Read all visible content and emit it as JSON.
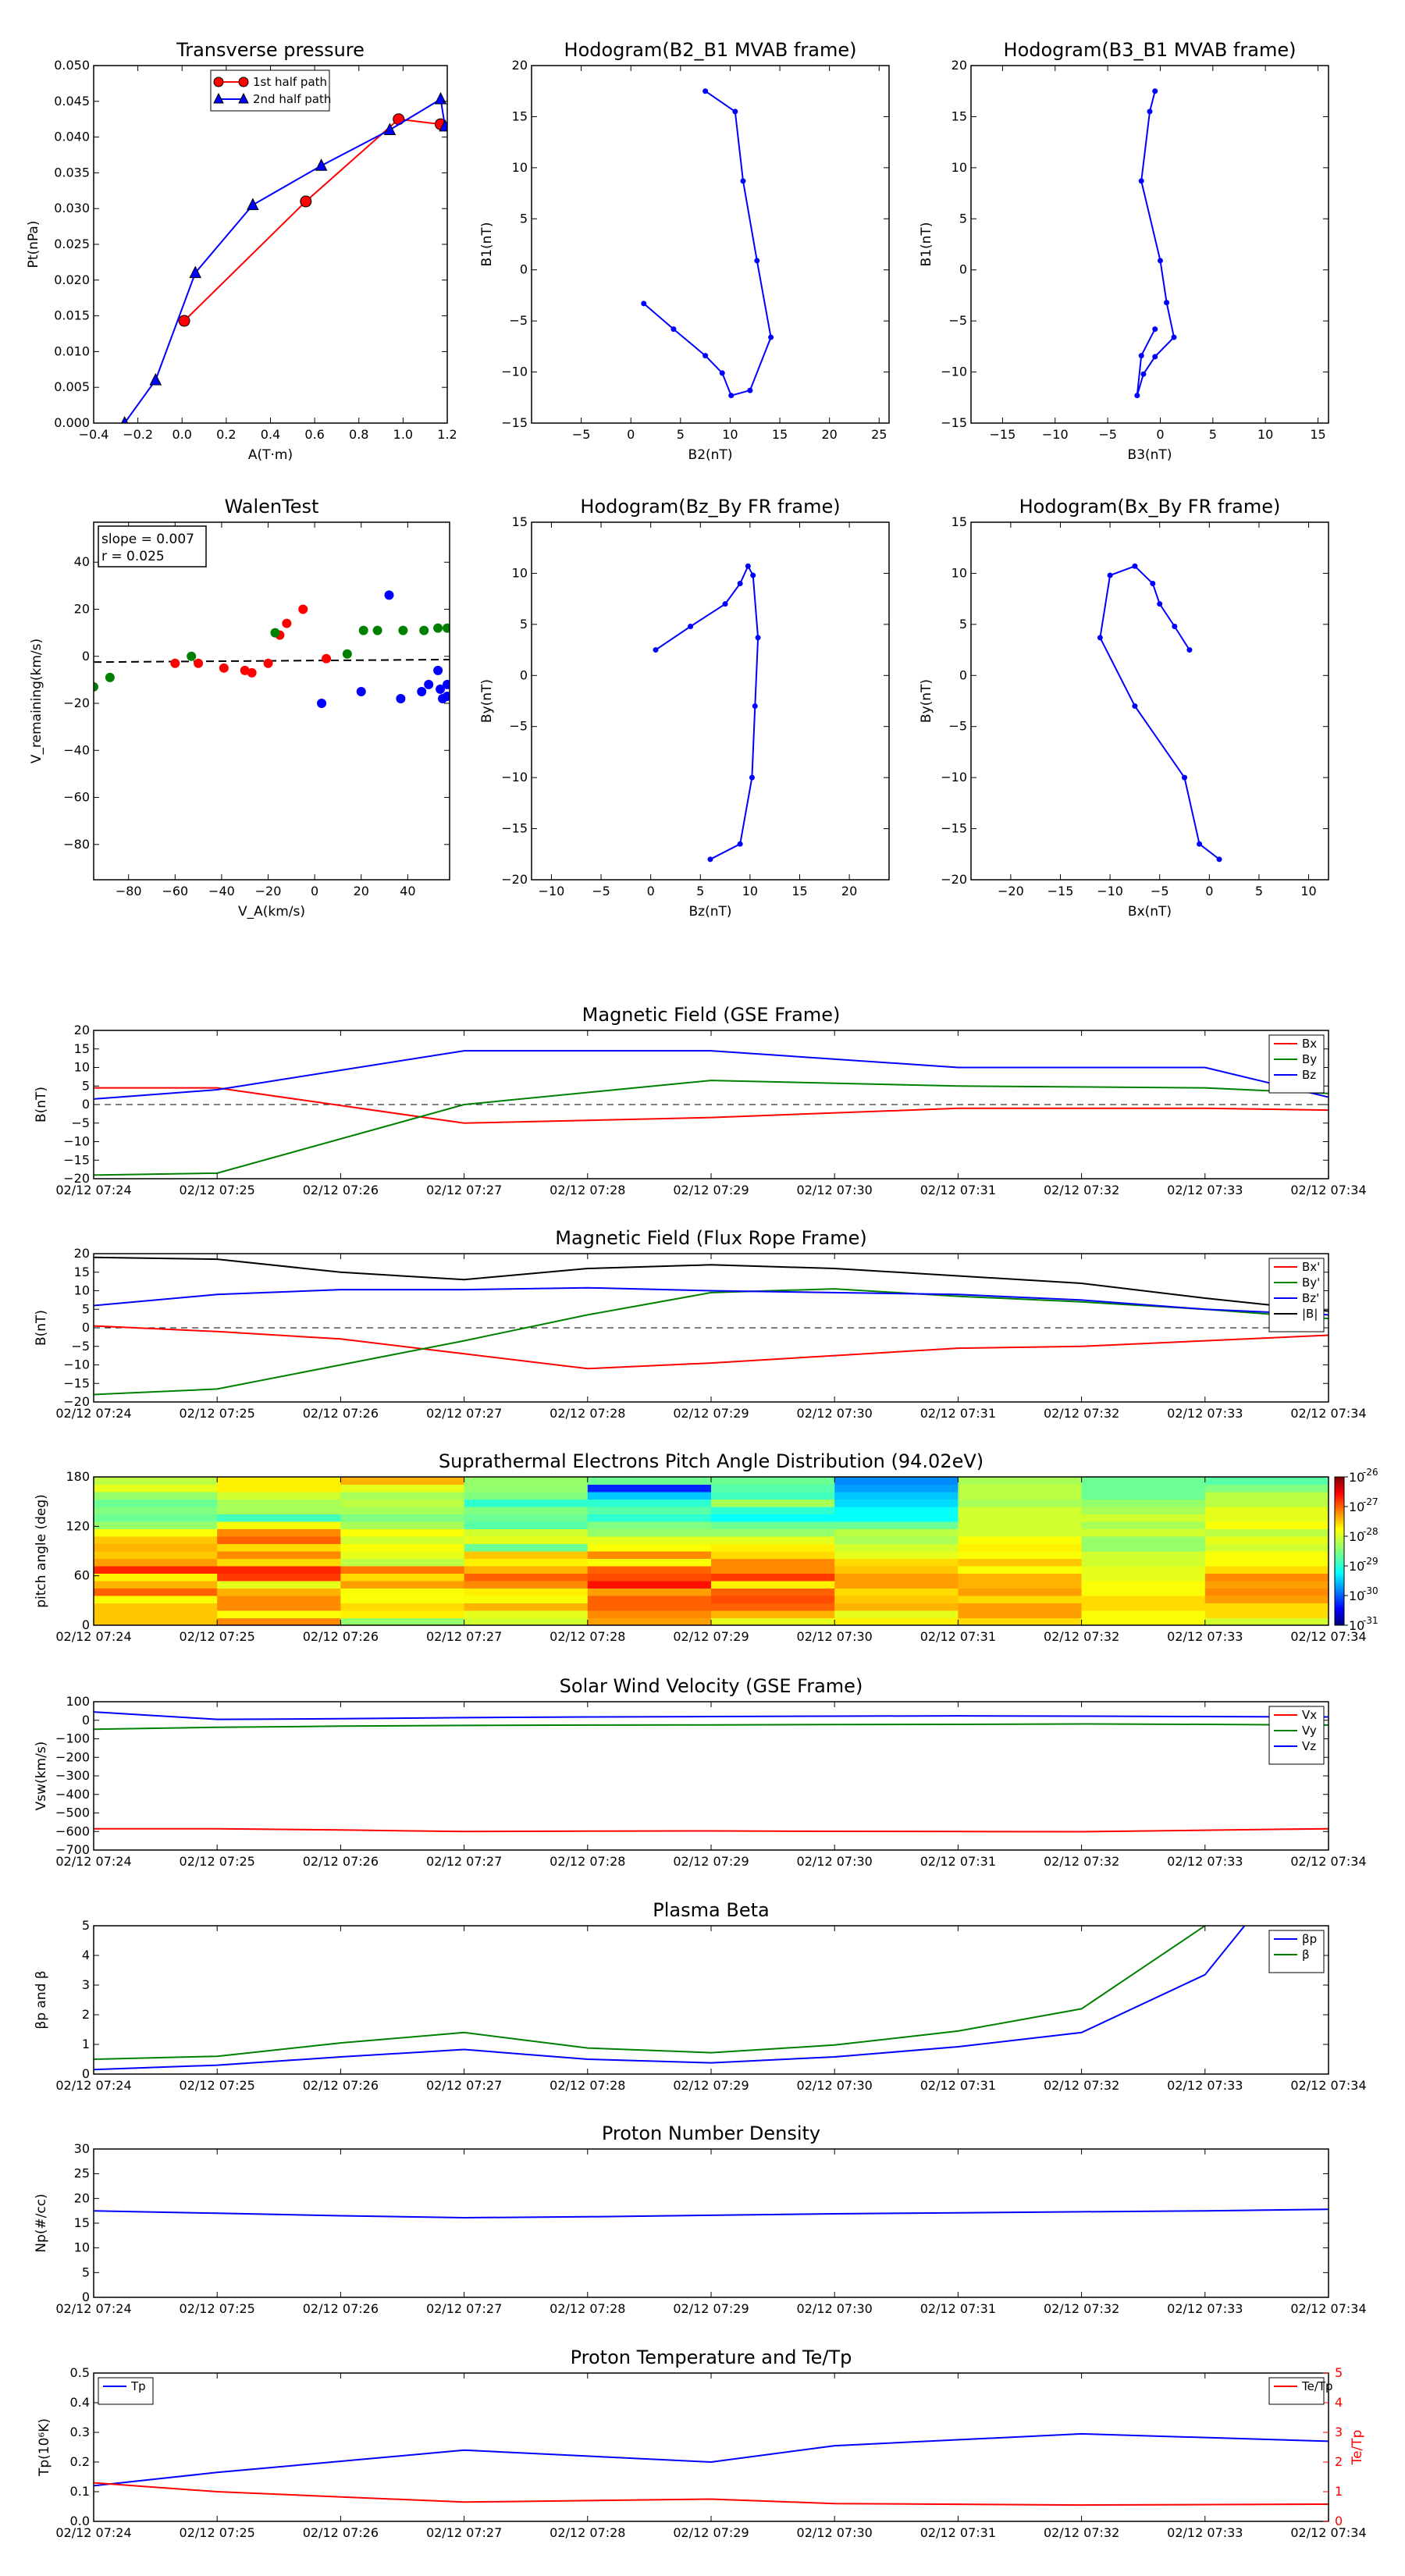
{
  "colors": {
    "red": "#ff0000",
    "green": "#008000",
    "blue": "#0000ff",
    "black": "#000000"
  },
  "time_ticks": [
    "02/12 07:24",
    "02/12 07:25",
    "02/12 07:26",
    "02/12 07:27",
    "02/12 07:28",
    "02/12 07:29",
    "02/12 07:30",
    "02/12 07:31",
    "02/12 07:32",
    "02/12 07:33",
    "02/12 07:34"
  ],
  "colorbar": {
    "labels": [
      "10",
      "10",
      "10",
      "10",
      "10",
      "10"
    ],
    "exponents": [
      "-26",
      "-27",
      "-28",
      "-29",
      "-30",
      "-31"
    ]
  },
  "chart_data": [
    {
      "type": "line",
      "title": "Transverse pressure",
      "xlabel": "A(T·m)",
      "ylabel": "Pt(nPa)",
      "xlim": [
        -0.4,
        1.2
      ],
      "ylim": [
        0,
        0.05
      ],
      "xticks": [
        "−0.4",
        "−0.2",
        "0.0",
        "0.2",
        "0.4",
        "0.6",
        "0.8",
        "1.0",
        "1.2"
      ],
      "yticks": [
        "0.000",
        "0.005",
        "0.010",
        "0.015",
        "0.020",
        "0.025",
        "0.030",
        "0.035",
        "0.040",
        "0.045",
        "0.050"
      ],
      "legend": "upper center",
      "series": [
        {
          "name": "1st half path",
          "color": "#ff0000",
          "marker": "circle",
          "x": [
            0.01,
            0.56,
            0.98,
            1.17
          ],
          "y": [
            0.0143,
            0.031,
            0.0425,
            0.0418
          ]
        },
        {
          "name": "2nd half path",
          "color": "#0000ff",
          "marker": "triangle",
          "x": [
            -0.26,
            -0.12,
            0.06,
            0.32,
            0.63,
            0.94,
            1.17,
            1.19
          ],
          "y": [
            0.0,
            0.006,
            0.021,
            0.0305,
            0.036,
            0.041,
            0.0453,
            0.0415
          ]
        }
      ]
    },
    {
      "type": "line",
      "title": "Hodogram(B2_B1 MVAB frame)",
      "xlabel": "B2(nT)",
      "ylabel": "B1(nT)",
      "xlim": [
        -10,
        26
      ],
      "ylim": [
        -15,
        20
      ],
      "xticks": [
        "−5",
        "0",
        "5",
        "10",
        "15",
        "20",
        "25"
      ],
      "yticks": [
        "−15",
        "−10",
        "−5",
        "0",
        "5",
        "10",
        "15",
        "20"
      ],
      "series": [
        {
          "color": "#0000ff",
          "x": [
            7.5,
            10.5,
            11.3,
            12.7,
            14.1,
            12,
            10.1,
            9.2,
            7.5,
            4.3,
            1.3
          ],
          "y": [
            17.5,
            15.5,
            8.7,
            0.9,
            -6.6,
            -11.8,
            -12.3,
            -10.1,
            -8.4,
            -5.8,
            -3.3
          ]
        }
      ]
    },
    {
      "type": "line",
      "title": "Hodogram(B3_B1 MVAB frame)",
      "xlabel": "B3(nT)",
      "ylabel": "B1(nT)",
      "xlim": [
        -18,
        16
      ],
      "ylim": [
        -15,
        20
      ],
      "xticks": [
        "−15",
        "−10",
        "−5",
        "0",
        "5",
        "10",
        "15"
      ],
      "yticks": [
        "−15",
        "−10",
        "−5",
        "0",
        "5",
        "10",
        "15",
        "20"
      ],
      "series": [
        {
          "color": "#0000ff",
          "x": [
            -0.5,
            -1,
            -1.8,
            0,
            0.6,
            1.3,
            -0.5,
            -1.6,
            -2.2,
            -1.8,
            -0.5
          ],
          "y": [
            17.5,
            15.5,
            8.7,
            0.9,
            -3.2,
            -6.6,
            -8.5,
            -10.2,
            -12.3,
            -8.4,
            -5.8
          ]
        }
      ]
    },
    {
      "type": "scatter",
      "title": "WalenTest",
      "xlabel": "V_A(km/s)",
      "ylabel": "V_remaining(km/s)",
      "xlim": [
        -95,
        58
      ],
      "ylim": [
        -95,
        57
      ],
      "xticks": [
        "−80",
        "−60",
        "−40",
        "−20",
        "0",
        "20",
        "40"
      ],
      "yticks": [
        "−80",
        "−60",
        "−40",
        "−20",
        "0",
        "20",
        "40"
      ],
      "annotation": [
        "slope = 0.007",
        "r = 0.025"
      ],
      "fit": {
        "slope": 0.007,
        "intercept": -1.8
      },
      "series": [
        {
          "color": "#ff0000",
          "x": [
            -60,
            -50,
            -39,
            -30,
            -27,
            -20,
            -15,
            -12,
            -5,
            5
          ],
          "y": [
            -3,
            -3,
            -5,
            -6,
            -7,
            -3,
            9,
            14,
            20,
            -1
          ]
        },
        {
          "color": "#008000",
          "x": [
            -95,
            -88,
            -53,
            -17,
            14,
            21,
            27,
            38,
            47,
            53,
            57
          ],
          "y": [
            -13,
            -9,
            0,
            10,
            1,
            11,
            11,
            11,
            11,
            12,
            12
          ]
        },
        {
          "color": "#0000ff",
          "x": [
            3,
            20,
            32,
            37,
            46,
            49,
            53,
            54,
            55,
            57,
            57
          ],
          "y": [
            -20,
            -15,
            26,
            -18,
            -15,
            -12,
            -6,
            -14,
            -18,
            -12,
            -17
          ]
        }
      ]
    },
    {
      "type": "line",
      "title": "Hodogram(Bz_By FR frame)",
      "xlabel": "Bz(nT)",
      "ylabel": "By(nT)",
      "xlim": [
        -12,
        24
      ],
      "ylim": [
        -20,
        15
      ],
      "xticks": [
        "−10",
        "−5",
        "0",
        "5",
        "10",
        "15",
        "20"
      ],
      "yticks": [
        "−20",
        "−15",
        "−10",
        "−5",
        "0",
        "5",
        "10",
        "15"
      ],
      "series": [
        {
          "color": "#0000ff",
          "x": [
            6,
            9,
            10.2,
            10.5,
            10.8,
            10.3,
            9.8,
            9,
            7.5,
            4,
            0.5
          ],
          "y": [
            -18,
            -16.5,
            -10,
            -3,
            3.7,
            9.8,
            10.7,
            9,
            7,
            4.8,
            2.5
          ]
        }
      ]
    },
    {
      "type": "line",
      "title": "Hodogram(Bx_By FR frame)",
      "xlabel": "Bx(nT)",
      "ylabel": "By(nT)",
      "xlim": [
        -24,
        12
      ],
      "ylim": [
        -20,
        15
      ],
      "xticks": [
        "−20",
        "−15",
        "−10",
        "−5",
        "0",
        "5",
        "10"
      ],
      "yticks": [
        "−20",
        "−15",
        "−10",
        "−5",
        "0",
        "5",
        "10",
        "15"
      ],
      "series": [
        {
          "color": "#0000ff",
          "x": [
            1,
            -1,
            -2.5,
            -7.5,
            -11,
            -10,
            -7.5,
            -5.7,
            -5,
            -3.5,
            -2
          ],
          "y": [
            -18,
            -16.5,
            -10,
            -3,
            3.7,
            9.8,
            10.7,
            9,
            7,
            4.8,
            2.5
          ]
        }
      ]
    },
    {
      "type": "line",
      "title": "Magnetic Field (GSE Frame)",
      "ylabel": "B(nT)",
      "ylim": [
        -20,
        20
      ],
      "yticks": [
        "20",
        "15",
        "10",
        "5",
        "0",
        "−5",
        "−10",
        "−15",
        "−20"
      ],
      "hline": 0,
      "legend": "upper right",
      "x": [
        0,
        1,
        3,
        5,
        7,
        9,
        10
      ],
      "series": [
        {
          "name": "Bx",
          "color": "#ff0000",
          "values": [
            4.5,
            4.5,
            -5,
            -3.5,
            -1,
            -1,
            -1.5
          ]
        },
        {
          "name": "By",
          "color": "#008000",
          "values": [
            -19,
            -18.5,
            0,
            6.5,
            5,
            4.5,
            3
          ]
        },
        {
          "name": "Bz",
          "color": "#0000ff",
          "values": [
            1.5,
            4,
            14.5,
            14.5,
            10,
            10,
            2
          ]
        }
      ]
    },
    {
      "type": "line",
      "title": "Magnetic Field (Flux Rope Frame)",
      "ylabel": "B(nT)",
      "ylim": [
        -20,
        20
      ],
      "yticks": [
        "20",
        "15",
        "10",
        "5",
        "0",
        "−5",
        "−10",
        "−15",
        "−20"
      ],
      "hline": 0,
      "legend": "upper right",
      "x": [
        0,
        1,
        2,
        3,
        4,
        5,
        6,
        7,
        8,
        9,
        10
      ],
      "series": [
        {
          "name": "Bx'",
          "color": "#ff0000",
          "values": [
            0.5,
            -1,
            -3,
            -7,
            -11,
            -9.5,
            -7.5,
            -5.5,
            -5,
            -3.5,
            -2
          ]
        },
        {
          "name": "By'",
          "color": "#008000",
          "values": [
            -18,
            -16.5,
            -10,
            -3.5,
            3.5,
            9.5,
            10.5,
            8.5,
            7,
            5,
            2.5
          ]
        },
        {
          "name": "Bz'",
          "color": "#0000ff",
          "values": [
            6,
            9,
            10.3,
            10.3,
            10.8,
            10,
            9.5,
            9,
            7.5,
            5,
            3.5
          ]
        },
        {
          "name": "|B|",
          "color": "#000000",
          "values": [
            19,
            18.5,
            15,
            13,
            16,
            17,
            16,
            14,
            12,
            8,
            4.5
          ]
        }
      ]
    },
    {
      "type": "heatmap",
      "title": "Suprathermal Electrons Pitch Angle Distribution (94.02eV)",
      "ylabel": "pitch angle (deg)",
      "ylim": [
        0,
        180
      ],
      "yticks": [
        "180",
        "120",
        "60",
        "0"
      ],
      "cols": 10,
      "rows": 20,
      "colorscale": "jet",
      "zscale": "log",
      "zrange": [
        -31,
        -26
      ],
      "z": [
        [
          -27.6,
          -27.6,
          -27.6,
          -27.9,
          -27.1,
          -27.5,
          -27.8,
          -26.8,
          -27.4,
          -27.6,
          -27.5,
          -27.6,
          -27.9,
          -28.4,
          -28.6,
          -28.5,
          -28.6,
          -28.4,
          -28.0,
          -28.2
        ],
        [
          -27.3,
          -27.9,
          -27.3,
          -27.3,
          -27.5,
          -28.0,
          -26.9,
          -26.8,
          -27.7,
          -27.3,
          -27.7,
          -27.1,
          -27.3,
          -27.9,
          -28.8,
          -28.3,
          -28.3,
          -28.1,
          -27.8,
          -27.8
        ],
        [
          -28.4,
          -27.8,
          -27.7,
          -27.9,
          -27.9,
          -27.4,
          -27.7,
          -27.2,
          -28.2,
          -28.0,
          -27.9,
          -28.1,
          -27.9,
          -28.3,
          -28.5,
          -28.3,
          -28.2,
          -28.3,
          -28.0,
          -27.5
        ],
        [
          -28.1,
          -28.0,
          -27.5,
          -27.9,
          -27.8,
          -27.3,
          -27.1,
          -27.5,
          -27.8,
          -27.6,
          -28.6,
          -28.0,
          -28.1,
          -28.7,
          -28.6,
          -28.5,
          -28.9,
          -28.5,
          -28.4,
          -28.4
        ],
        [
          -27.4,
          -27.3,
          -27.1,
          -27.1,
          -27.4,
          -26.7,
          -27.0,
          -27.1,
          -27.9,
          -27.3,
          -27.9,
          -28.0,
          -28.4,
          -28.5,
          -28.9,
          -28.7,
          -28.9,
          -29.4,
          -30.2,
          -28.6
        ],
        [
          -28.0,
          -27.5,
          -27.1,
          -27.0,
          -27.1,
          -27.8,
          -26.9,
          -27.3,
          -27.3,
          -27.7,
          -27.8,
          -28.0,
          -28.4,
          -28.6,
          -29.1,
          -28.9,
          -28.3,
          -28.8,
          -28.7,
          -28.6
        ],
        [
          -27.8,
          -28.0,
          -27.5,
          -27.6,
          -27.7,
          -27.4,
          -27.4,
          -27.6,
          -27.7,
          -28.0,
          -28.1,
          -28.3,
          -28.2,
          -28.6,
          -29.1,
          -29.1,
          -29.3,
          -29.4,
          -29.6,
          -29.7
        ],
        [
          -27.7,
          -27.4,
          -27.4,
          -27.7,
          -27.4,
          -27.5,
          -27.5,
          -27.9,
          -27.6,
          -27.9,
          -27.8,
          -27.9,
          -28.1,
          -28.1,
          -28.1,
          -28.1,
          -28.3,
          -28.2,
          -28.2,
          -28.3
        ],
        [
          -27.9,
          -27.9,
          -27.7,
          -27.7,
          -27.9,
          -27.9,
          -28.0,
          -28.0,
          -28.1,
          -28.1,
          -28.4,
          -28.4,
          -28.1,
          -28.3,
          -28.1,
          -28.3,
          -28.4,
          -28.6,
          -28.6,
          -28.6
        ],
        [
          -28.1,
          -27.7,
          -27.7,
          -27.4,
          -27.3,
          -27.4,
          -27.3,
          -27.7,
          -27.9,
          -27.9,
          -28.1,
          -28.0,
          -28.2,
          -27.9,
          -28.0,
          -28.0,
          -28.2,
          -28.2,
          -28.5,
          -28.7
        ]
      ]
    },
    {
      "type": "line",
      "title": "Solar Wind Velocity (GSE Frame)",
      "ylabel": "Vsw(km/s)",
      "ylim": [
        -700,
        100
      ],
      "yticks": [
        "100",
        "0",
        "−100",
        "−200",
        "−300",
        "−400",
        "−500",
        "−600",
        "−700"
      ],
      "legend": "upper right",
      "x": [
        0,
        1,
        2,
        3,
        4,
        5,
        6,
        7,
        8,
        9,
        10
      ],
      "series": [
        {
          "name": "Vx",
          "color": "#ff0000",
          "values": [
            -585,
            -585,
            -592,
            -600,
            -598,
            -597,
            -599,
            -600,
            -601,
            -593,
            -585
          ]
        },
        {
          "name": "Vy",
          "color": "#008000",
          "values": [
            -48,
            -38,
            -32,
            -28,
            -26,
            -25,
            -23,
            -22,
            -20,
            -22,
            -26
          ]
        },
        {
          "name": "Vz",
          "color": "#0000ff",
          "values": [
            45,
            5,
            8,
            14,
            18,
            20,
            22,
            24,
            22,
            20,
            18
          ]
        }
      ]
    },
    {
      "type": "line",
      "title": "Plasma Beta",
      "ylabel": "βp and β",
      "ylim": [
        0,
        5
      ],
      "yticks": [
        "5",
        "4",
        "3",
        "2",
        "1",
        "0"
      ],
      "legend": "upper right",
      "x": [
        0,
        1,
        2,
        3,
        4,
        5,
        6,
        7,
        8,
        9,
        10
      ],
      "series": [
        {
          "name": "βp",
          "color": "#0000ff",
          "values": [
            0.15,
            0.3,
            0.58,
            0.83,
            0.5,
            0.38,
            0.58,
            0.92,
            1.4,
            3.35,
            8.5
          ]
        },
        {
          "name": "β",
          "color": "#008000",
          "values": [
            0.5,
            0.6,
            1.05,
            1.4,
            0.88,
            0.72,
            0.98,
            1.45,
            2.2,
            5.0,
            9.0
          ]
        }
      ]
    },
    {
      "type": "line",
      "title": "Proton Number Density",
      "ylabel": "Np(#/cc)",
      "ylim": [
        0,
        30
      ],
      "yticks": [
        "30",
        "25",
        "20",
        "15",
        "10",
        "5",
        "0"
      ],
      "x": [
        0,
        1,
        2,
        3,
        4,
        5,
        6,
        7,
        8,
        9,
        10
      ],
      "series": [
        {
          "color": "#0000ff",
          "values": [
            17.5,
            17,
            16.5,
            16.1,
            16.3,
            16.6,
            16.9,
            17.1,
            17.3,
            17.5,
            17.8
          ]
        }
      ]
    },
    {
      "type": "line",
      "title": "Proton Temperature and Te/Tp",
      "ylabel": "Tp(10⁶K)",
      "y2label": "Te/Tp",
      "ylim": [
        0,
        0.5
      ],
      "y2lim": [
        0,
        5
      ],
      "yticks": [
        "0.5",
        "0.4",
        "0.3",
        "0.2",
        "0.1",
        "0.0"
      ],
      "y2ticks": [
        "5",
        "4",
        "3",
        "2",
        "1",
        "0"
      ],
      "x": [
        0,
        1,
        3,
        5,
        6,
        8,
        10
      ],
      "series": [
        {
          "name": "Tp",
          "color": "#0000ff",
          "axis": "left",
          "legend": "upper left",
          "values": [
            0.12,
            0.165,
            0.24,
            0.2,
            0.255,
            0.295,
            0.27
          ]
        },
        {
          "name": "Te/Tp",
          "color": "#ff0000",
          "axis": "right",
          "legend": "upper right",
          "values": [
            1.3,
            1.0,
            0.65,
            0.75,
            0.6,
            0.55,
            0.58
          ]
        }
      ]
    }
  ]
}
